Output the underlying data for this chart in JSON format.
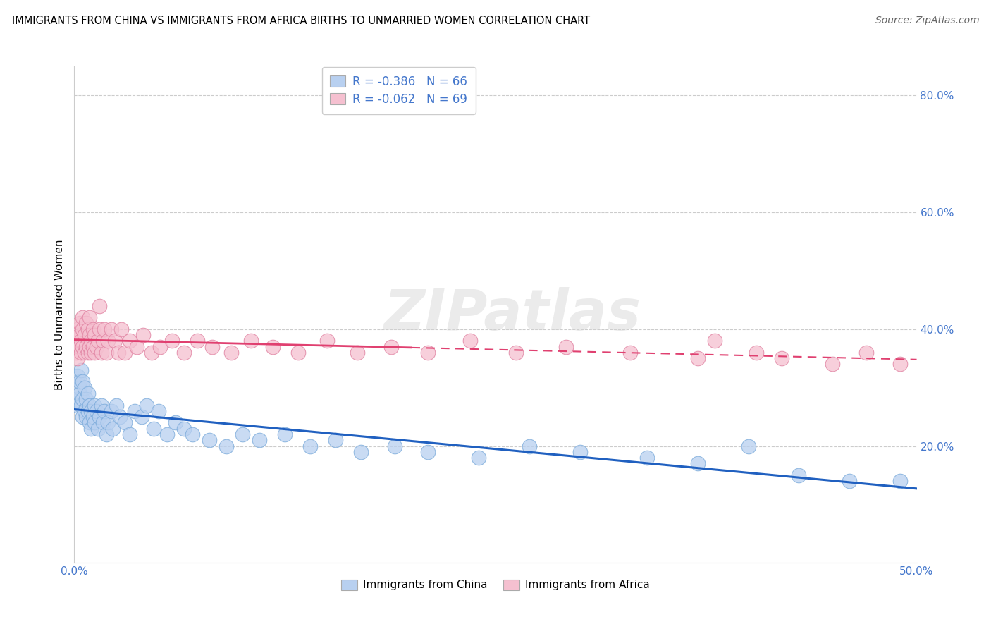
{
  "title": "IMMIGRANTS FROM CHINA VS IMMIGRANTS FROM AFRICA BIRTHS TO UNMARRIED WOMEN CORRELATION CHART",
  "source": "Source: ZipAtlas.com",
  "xlim": [
    0.0,
    0.5
  ],
  "ylim": [
    0.0,
    0.85
  ],
  "xticks": [
    0.0,
    0.1,
    0.2,
    0.3,
    0.4,
    0.5
  ],
  "xtick_labels": [
    "0.0%",
    "",
    "",
    "",
    "",
    "50.0%"
  ],
  "yticks": [
    0.2,
    0.4,
    0.6,
    0.8
  ],
  "ytick_labels": [
    "20.0%",
    "40.0%",
    "60.0%",
    "80.0%"
  ],
  "ylabel_label": "Births to Unmarried Women",
  "watermark": "ZIPatlas",
  "legend_top": [
    {
      "label": "R = -0.386   N = 66",
      "color": "#b8d0f0"
    },
    {
      "label": "R = -0.062   N = 69",
      "color": "#f5c0d0"
    }
  ],
  "legend_bottom": [
    "Immigrants from China",
    "Immigrants from Africa"
  ],
  "series_china": {
    "scatter_color": "#b8d0f0",
    "scatter_edge": "#7aaada",
    "line_color": "#2060c0",
    "R": -0.386,
    "N": 66,
    "x": [
      0.001,
      0.002,
      0.002,
      0.003,
      0.003,
      0.003,
      0.004,
      0.004,
      0.005,
      0.005,
      0.005,
      0.006,
      0.006,
      0.007,
      0.007,
      0.008,
      0.008,
      0.009,
      0.009,
      0.01,
      0.01,
      0.011,
      0.012,
      0.012,
      0.013,
      0.014,
      0.015,
      0.016,
      0.017,
      0.018,
      0.019,
      0.02,
      0.022,
      0.023,
      0.025,
      0.027,
      0.03,
      0.033,
      0.036,
      0.04,
      0.043,
      0.047,
      0.05,
      0.055,
      0.06,
      0.065,
      0.07,
      0.08,
      0.09,
      0.1,
      0.11,
      0.125,
      0.14,
      0.155,
      0.17,
      0.19,
      0.21,
      0.24,
      0.27,
      0.3,
      0.34,
      0.37,
      0.4,
      0.43,
      0.46,
      0.49
    ],
    "y": [
      0.28,
      0.27,
      0.32,
      0.3,
      0.29,
      0.31,
      0.27,
      0.33,
      0.25,
      0.28,
      0.31,
      0.26,
      0.3,
      0.25,
      0.28,
      0.26,
      0.29,
      0.24,
      0.27,
      0.23,
      0.26,
      0.25,
      0.27,
      0.24,
      0.26,
      0.23,
      0.25,
      0.27,
      0.24,
      0.26,
      0.22,
      0.24,
      0.26,
      0.23,
      0.27,
      0.25,
      0.24,
      0.22,
      0.26,
      0.25,
      0.27,
      0.23,
      0.26,
      0.22,
      0.24,
      0.23,
      0.22,
      0.21,
      0.2,
      0.22,
      0.21,
      0.22,
      0.2,
      0.21,
      0.19,
      0.2,
      0.19,
      0.18,
      0.2,
      0.19,
      0.18,
      0.17,
      0.2,
      0.15,
      0.14,
      0.14
    ]
  },
  "series_africa": {
    "scatter_color": "#f5c0d0",
    "scatter_edge": "#e080a0",
    "line_color": "#e04070",
    "line_dash_start": 0.2,
    "R": -0.062,
    "N": 69,
    "x": [
      0.001,
      0.001,
      0.002,
      0.002,
      0.003,
      0.003,
      0.003,
      0.004,
      0.004,
      0.005,
      0.005,
      0.005,
      0.006,
      0.006,
      0.007,
      0.007,
      0.008,
      0.008,
      0.009,
      0.009,
      0.009,
      0.01,
      0.01,
      0.011,
      0.011,
      0.012,
      0.012,
      0.013,
      0.014,
      0.015,
      0.015,
      0.016,
      0.017,
      0.018,
      0.019,
      0.02,
      0.022,
      0.024,
      0.026,
      0.028,
      0.03,
      0.033,
      0.037,
      0.041,
      0.046,
      0.051,
      0.058,
      0.065,
      0.073,
      0.082,
      0.093,
      0.105,
      0.118,
      0.133,
      0.15,
      0.168,
      0.188,
      0.21,
      0.235,
      0.262,
      0.292,
      0.33,
      0.37,
      0.38,
      0.405,
      0.42,
      0.45,
      0.47,
      0.49
    ],
    "y": [
      0.36,
      0.38,
      0.35,
      0.4,
      0.37,
      0.39,
      0.41,
      0.36,
      0.38,
      0.37,
      0.4,
      0.42,
      0.36,
      0.39,
      0.37,
      0.41,
      0.36,
      0.4,
      0.37,
      0.39,
      0.42,
      0.36,
      0.38,
      0.37,
      0.4,
      0.36,
      0.39,
      0.37,
      0.38,
      0.4,
      0.44,
      0.36,
      0.38,
      0.4,
      0.36,
      0.38,
      0.4,
      0.38,
      0.36,
      0.4,
      0.36,
      0.38,
      0.37,
      0.39,
      0.36,
      0.37,
      0.38,
      0.36,
      0.38,
      0.37,
      0.36,
      0.38,
      0.37,
      0.36,
      0.38,
      0.36,
      0.37,
      0.36,
      0.38,
      0.36,
      0.37,
      0.36,
      0.35,
      0.38,
      0.36,
      0.35,
      0.34,
      0.36,
      0.34
    ]
  },
  "title_fontsize": 10.5,
  "source_fontsize": 10,
  "tick_color": "#4477cc",
  "grid_color": "#cccccc",
  "background_color": "#ffffff"
}
